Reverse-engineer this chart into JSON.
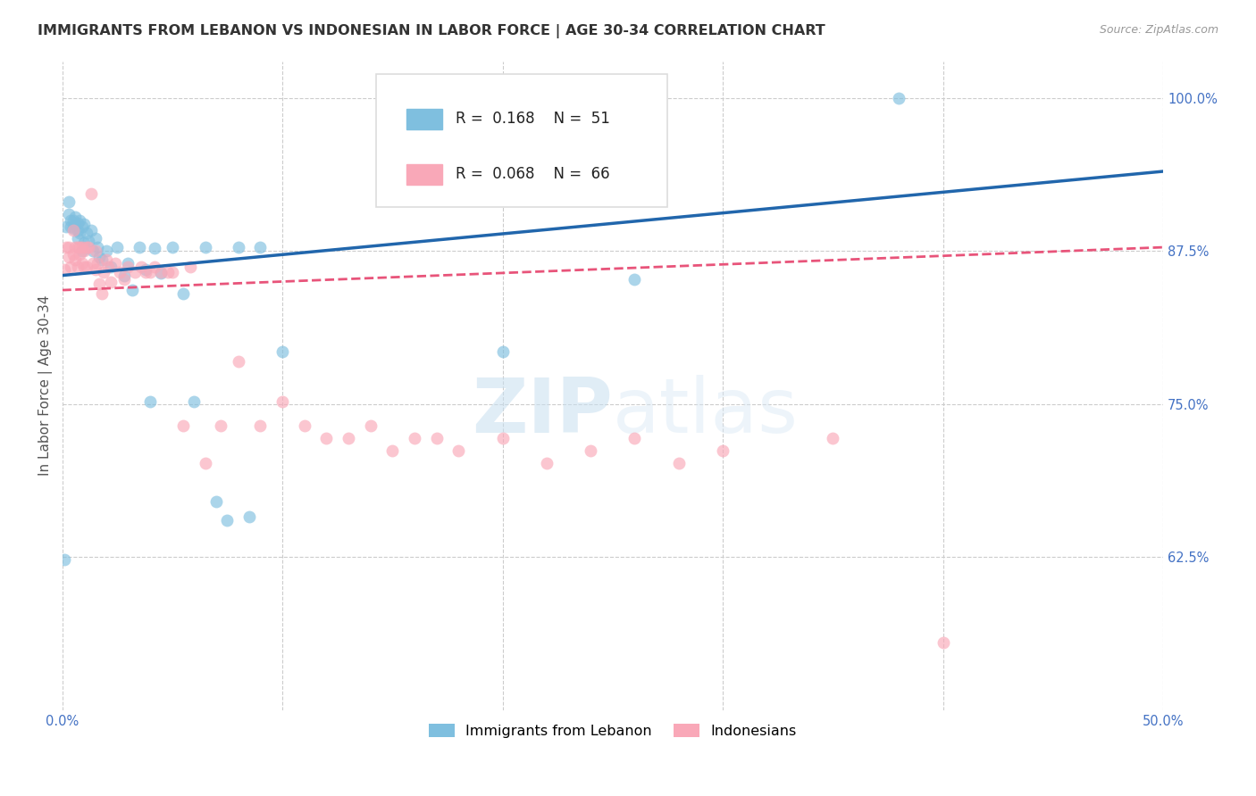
{
  "title": "IMMIGRANTS FROM LEBANON VS INDONESIAN IN LABOR FORCE | AGE 30-34 CORRELATION CHART",
  "source": "Source: ZipAtlas.com",
  "ylabel": "In Labor Force | Age 30-34",
  "xlim": [
    0.0,
    0.5
  ],
  "ylim": [
    0.5,
    1.03
  ],
  "yticks": [
    0.625,
    0.75,
    0.875,
    1.0
  ],
  "ytick_labels": [
    "62.5%",
    "75.0%",
    "87.5%",
    "100.0%"
  ],
  "xtick_positions": [
    0.0,
    0.1,
    0.2,
    0.3,
    0.4,
    0.5
  ],
  "xtick_labels": [
    "0.0%",
    "",
    "",
    "",
    "",
    "50.0%"
  ],
  "legend_blue_r": "0.168",
  "legend_blue_n": "51",
  "legend_pink_r": "0.068",
  "legend_pink_n": "66",
  "blue_label": "Immigrants from Lebanon",
  "pink_label": "Indonesians",
  "blue_color": "#7fbfdf",
  "pink_color": "#f9a8b8",
  "trend_blue_color": "#2166ac",
  "trend_pink_color": "#e8547a",
  "watermark_zip": "ZIP",
  "watermark_atlas": "atlas",
  "blue_x": [
    0.001,
    0.002,
    0.003,
    0.003,
    0.004,
    0.004,
    0.005,
    0.005,
    0.006,
    0.006,
    0.007,
    0.007,
    0.007,
    0.008,
    0.008,
    0.009,
    0.009,
    0.01,
    0.01,
    0.011,
    0.012,
    0.013,
    0.014,
    0.015,
    0.016,
    0.017,
    0.018,
    0.02,
    0.022,
    0.025,
    0.028,
    0.03,
    0.032,
    0.035,
    0.038,
    0.04,
    0.042,
    0.045,
    0.05,
    0.055,
    0.06,
    0.065,
    0.07,
    0.075,
    0.08,
    0.085,
    0.09,
    0.1,
    0.2,
    0.26,
    0.38
  ],
  "blue_y": [
    0.623,
    0.895,
    0.905,
    0.915,
    0.9,
    0.895,
    0.9,
    0.893,
    0.897,
    0.903,
    0.885,
    0.892,
    0.898,
    0.9,
    0.89,
    0.875,
    0.895,
    0.882,
    0.897,
    0.89,
    0.883,
    0.892,
    0.875,
    0.885,
    0.878,
    0.87,
    0.868,
    0.875,
    0.862,
    0.878,
    0.855,
    0.865,
    0.843,
    0.878,
    0.86,
    0.752,
    0.877,
    0.857,
    0.878,
    0.84,
    0.752,
    0.878,
    0.67,
    0.655,
    0.878,
    0.658,
    0.878,
    0.793,
    0.793,
    0.852,
    1.0
  ],
  "pink_x": [
    0.001,
    0.002,
    0.003,
    0.003,
    0.004,
    0.005,
    0.005,
    0.006,
    0.006,
    0.007,
    0.007,
    0.008,
    0.008,
    0.009,
    0.009,
    0.01,
    0.01,
    0.011,
    0.011,
    0.012,
    0.013,
    0.014,
    0.015,
    0.015,
    0.016,
    0.017,
    0.018,
    0.019,
    0.02,
    0.021,
    0.022,
    0.024,
    0.026,
    0.028,
    0.03,
    0.033,
    0.036,
    0.038,
    0.04,
    0.042,
    0.045,
    0.048,
    0.05,
    0.055,
    0.058,
    0.065,
    0.072,
    0.08,
    0.09,
    0.1,
    0.11,
    0.12,
    0.13,
    0.14,
    0.15,
    0.16,
    0.17,
    0.18,
    0.2,
    0.22,
    0.24,
    0.26,
    0.28,
    0.3,
    0.35,
    0.4
  ],
  "pink_y": [
    0.86,
    0.878,
    0.87,
    0.878,
    0.862,
    0.892,
    0.872,
    0.878,
    0.868,
    0.878,
    0.862,
    0.878,
    0.872,
    0.865,
    0.878,
    0.862,
    0.875,
    0.878,
    0.862,
    0.878,
    0.922,
    0.865,
    0.875,
    0.86,
    0.865,
    0.848,
    0.84,
    0.858,
    0.868,
    0.862,
    0.85,
    0.865,
    0.858,
    0.852,
    0.862,
    0.858,
    0.862,
    0.858,
    0.858,
    0.862,
    0.858,
    0.858,
    0.858,
    0.732,
    0.862,
    0.702,
    0.732,
    0.785,
    0.732,
    0.752,
    0.732,
    0.722,
    0.722,
    0.732,
    0.712,
    0.722,
    0.722,
    0.712,
    0.722,
    0.702,
    0.712,
    0.722,
    0.702,
    0.712,
    0.722,
    0.555
  ],
  "grid_color": "#cccccc",
  "axis_color": "#4472c4",
  "title_fontsize": 11.5,
  "axis_label_fontsize": 11,
  "tick_fontsize": 10.5,
  "legend_fontsize": 12,
  "marker_size": 100,
  "marker_alpha": 0.65
}
